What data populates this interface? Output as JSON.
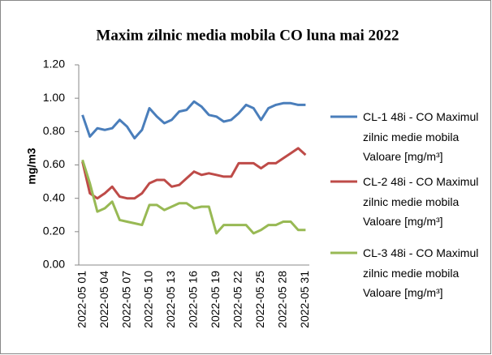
{
  "chart_data": {
    "type": "line",
    "title": "Maxim zilnic media mobila CO luna mai 2022",
    "y_label": "mg/m3",
    "categories": [
      "2022-05 01",
      null,
      null,
      "2022-05 04",
      null,
      null,
      "2022-05 07",
      null,
      null,
      "2022-05 10",
      null,
      null,
      "2022-05 13",
      null,
      null,
      "2022-05 16",
      null,
      null,
      "2022-05 19",
      null,
      null,
      "2022-05 22",
      null,
      null,
      "2022-05 25",
      null,
      null,
      "2022-05 28",
      null,
      null,
      "2022-05 31"
    ],
    "series": [
      {
        "name": "CL-1 48i - CO Maximul zilnic medie mobila Valoare [mg/m³]",
        "color": "#4a7ebb",
        "values": [
          0.9,
          0.77,
          0.82,
          0.81,
          0.82,
          0.87,
          0.83,
          0.76,
          0.81,
          0.94,
          0.89,
          0.85,
          0.87,
          0.92,
          0.93,
          0.98,
          0.95,
          0.9,
          0.89,
          0.86,
          0.87,
          0.91,
          0.96,
          0.94,
          0.87,
          0.94,
          0.96,
          0.97,
          0.97,
          0.96,
          0.96
        ]
      },
      {
        "name": "CL-2 48i - CO Maximul zilnic medie mobila Valoare [mg/m³]",
        "color": "#be4b48",
        "values": [
          0.62,
          0.43,
          0.4,
          0.43,
          0.47,
          0.41,
          0.4,
          0.4,
          0.43,
          0.49,
          0.51,
          0.51,
          0.47,
          0.48,
          0.52,
          0.56,
          0.54,
          0.55,
          0.54,
          0.53,
          0.53,
          0.61,
          0.61,
          0.61,
          0.58,
          0.61,
          0.61,
          0.64,
          0.67,
          0.7,
          0.66
        ]
      },
      {
        "name": "CL-3 48i - CO Maximul zilnic medie mobila Valoare [mg/m³]",
        "color": "#98b954",
        "values": [
          0.63,
          0.49,
          0.32,
          0.34,
          0.38,
          0.27,
          0.26,
          0.25,
          0.24,
          0.36,
          0.36,
          0.33,
          0.35,
          0.37,
          0.37,
          0.34,
          0.35,
          0.35,
          0.19,
          0.24,
          0.24,
          0.24,
          0.24,
          0.19,
          0.21,
          0.24,
          0.24,
          0.26,
          0.26,
          0.21,
          0.21
        ]
      }
    ],
    "ylim": [
      0,
      1.2
    ],
    "yticks": [
      {
        "value": 0,
        "label": "0.00"
      },
      {
        "value": 0.2,
        "label": "0.20"
      },
      {
        "value": 0.4,
        "label": "0.40"
      },
      {
        "value": 0.6,
        "label": "0.60"
      },
      {
        "value": 0.8,
        "label": "0.80"
      },
      {
        "value": 1.0,
        "label": "1.00"
      },
      {
        "value": 1.2,
        "label": "1.20"
      }
    ],
    "grid": false,
    "legend": "right"
  }
}
